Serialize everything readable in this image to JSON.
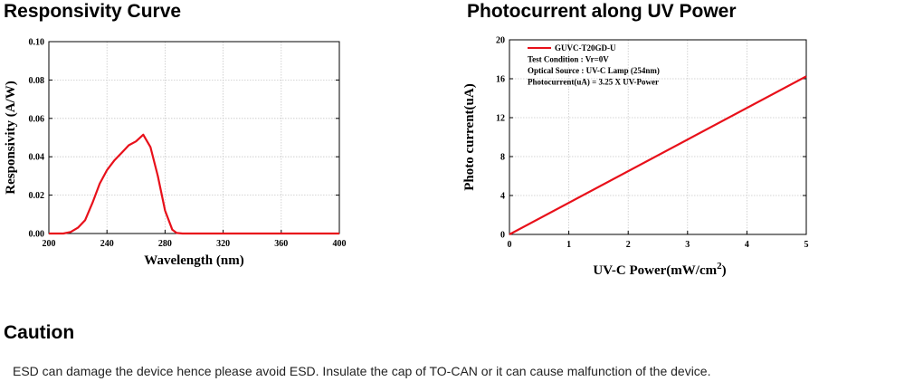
{
  "section1": {
    "title": "Responsivity Curve"
  },
  "section2": {
    "title": "Photocurrent along UV Power"
  },
  "caution": {
    "title": "Caution",
    "text": "ESD can damage the device hence please avoid ESD. Insulate the cap of TO-CAN or it can cause malfunction of the device."
  },
  "colors": {
    "curve": "#e8101a",
    "grid": "#c8c8c8",
    "axis": "#000000"
  },
  "chart_data": [
    {
      "type": "line",
      "xlabel": "Wavelength (nm)",
      "ylabel": "Responsivity (A/W)",
      "xlim": [
        200,
        400
      ],
      "ylim": [
        0,
        0.1
      ],
      "x_ticks": [
        "200",
        "240",
        "280",
        "320",
        "360",
        "400"
      ],
      "y_ticks": [
        "0.00",
        "0.02",
        "0.04",
        "0.06",
        "0.08",
        "0.10"
      ],
      "grid": true,
      "series": [
        {
          "x": [
            200,
            210,
            215,
            220,
            225,
            230,
            235,
            240,
            245,
            250,
            255,
            260,
            265,
            270,
            275,
            280,
            285,
            288,
            292,
            300,
            320,
            360,
            400
          ],
          "values": [
            0,
            0,
            0.0008,
            0.003,
            0.007,
            0.016,
            0.026,
            0.033,
            0.038,
            0.042,
            0.046,
            0.048,
            0.0515,
            0.045,
            0.03,
            0.012,
            0.002,
            0.0003,
            0,
            0,
            0,
            0,
            0
          ]
        }
      ]
    },
    {
      "type": "line",
      "xlabel": "UV-C Power(mW/cm",
      "xlabel_sup": "2",
      "xlabel_end": ")",
      "ylabel": "Photo current(uA)",
      "xlim": [
        0,
        5
      ],
      "ylim": [
        0,
        20
      ],
      "x_ticks": [
        "0",
        "1",
        "2",
        "3",
        "4",
        "5"
      ],
      "y_ticks": [
        "0",
        "4",
        "8",
        "12",
        "16",
        "20"
      ],
      "grid": true,
      "legend": {
        "position": "top-left",
        "entries": [
          "GUVC-T20GD-U",
          "Test Condition : Vr=0V",
          "Optical Source : UV-C Lamp (254nm)",
          "Photocurrent(uA) = 3.25 X UV-Power"
        ]
      },
      "series": [
        {
          "name": "GUVC-T20GD-U",
          "x": [
            0,
            5
          ],
          "values": [
            0,
            16.25
          ]
        }
      ]
    }
  ]
}
